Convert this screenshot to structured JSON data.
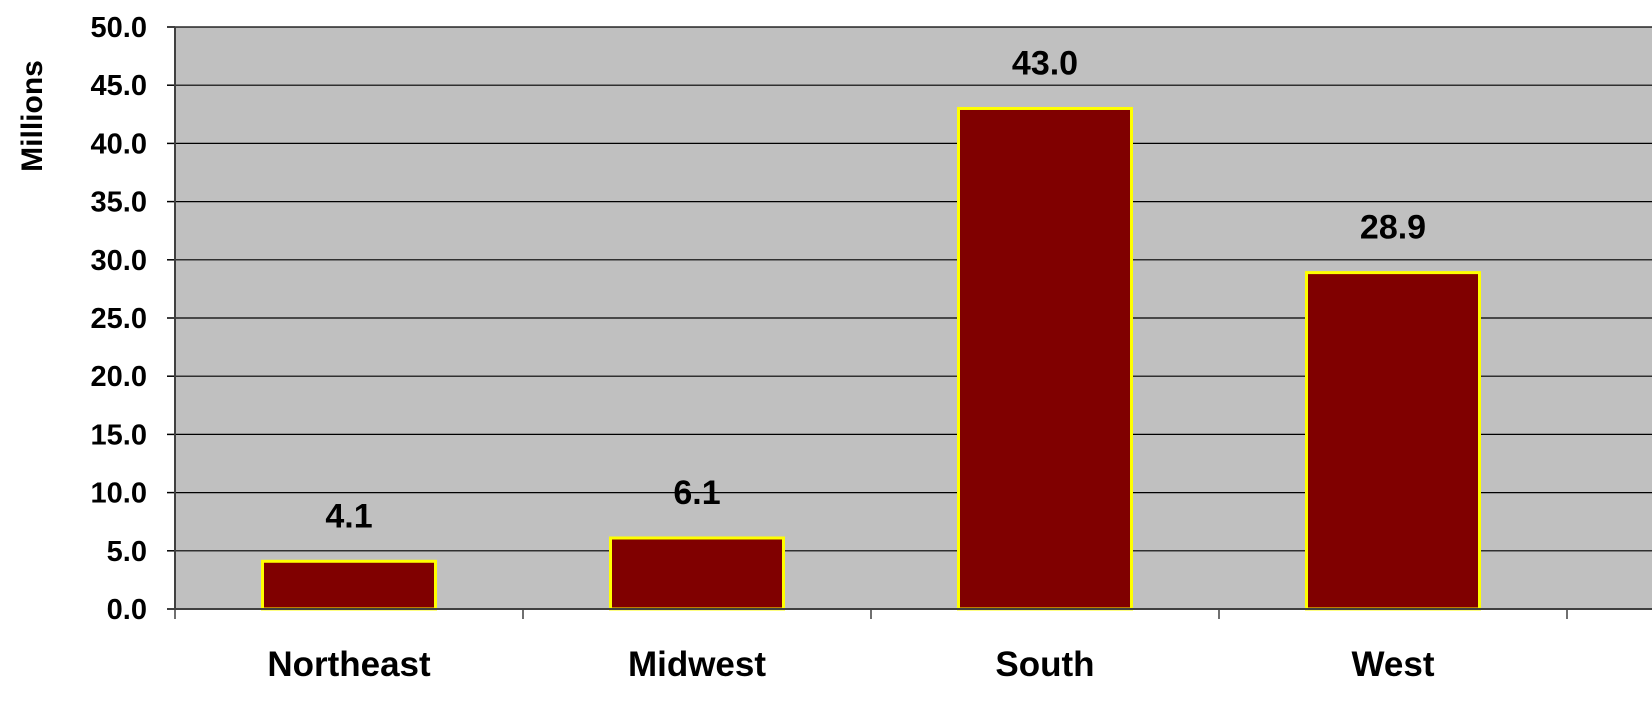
{
  "chart_data": {
    "type": "bar",
    "categories": [
      "Northeast",
      "Midwest",
      "South",
      "West"
    ],
    "values": [
      4.1,
      6.1,
      43.0,
      28.9
    ],
    "data_labels": [
      "4.1",
      "6.1",
      "43.0",
      "28.9"
    ],
    "ylabel": "Millions",
    "ylim": [
      0,
      50
    ],
    "yticks": [
      0,
      5,
      10,
      15,
      20,
      25,
      30,
      35,
      40,
      45,
      50
    ],
    "ytick_labels": [
      "0.0",
      "5.0",
      "10.0",
      "15.0",
      "20.0",
      "25.0",
      "30.0",
      "35.0",
      "40.0",
      "45.0",
      "50.0"
    ],
    "grid": true,
    "legend": "none",
    "colors": {
      "plot_background": "#c0c0c0",
      "bar_fill": "#800000",
      "bar_border": "#ffff00",
      "gridline": "#000000"
    }
  }
}
